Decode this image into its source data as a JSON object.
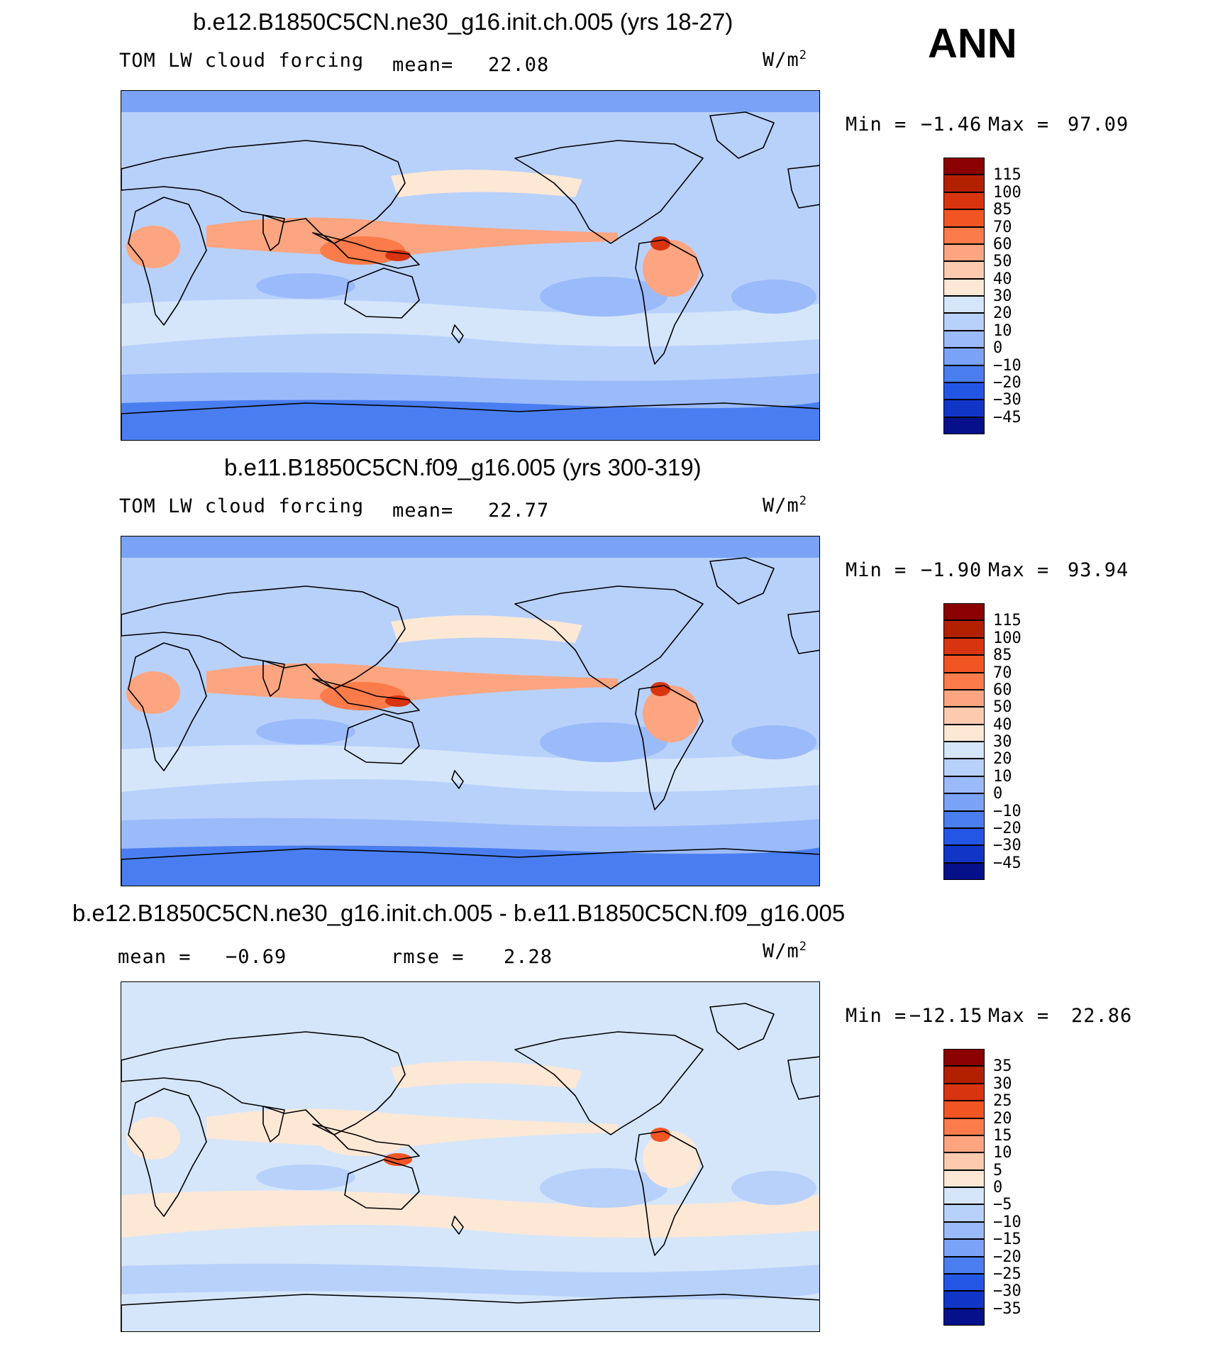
{
  "season": "ANN",
  "unit_base": "W/m",
  "unit_exp": "2",
  "panels": [
    {
      "title": "b.e12.B1850C5CN.ne30_g16.init.ch.005 (yrs 18-27)",
      "left_label": "TOM LW cloud forcing",
      "stat_label": "mean=",
      "stat_value": "22.08",
      "minmax": {
        "min_label": "Min =",
        "min": "−1.46",
        "max_label": "Max =",
        "max": "97.09"
      },
      "colorbar": {
        "labels": [
          "115",
          "100",
          "85",
          "70",
          "60",
          "50",
          "40",
          "30",
          "20",
          "10",
          "0",
          "−10",
          "−20",
          "−30",
          "−45"
        ],
        "colors": [
          "#8b0000",
          "#b32000",
          "#d83410",
          "#f25524",
          "#fb7b4a",
          "#fca580",
          "#fdcab0",
          "#fde8d6",
          "#d5e6fa",
          "#b8d1fb",
          "#9bbaf9",
          "#7aa2f7",
          "#4a7ef0",
          "#2456e6",
          "#1136c7",
          "#05108a"
        ]
      },
      "field": {
        "base": "#b8d1fb",
        "polar": "#7aa2f7",
        "antarctic": "#4a7ef0",
        "tropics": "#fca580",
        "warm_pool": "#fb7b4a",
        "core": "#d83410",
        "subtropic": "#d5e6fa",
        "cool": "#9bbaf9",
        "pale": "#fde8d6"
      }
    },
    {
      "title": "b.e11.B1850C5CN.f09_g16.005 (yrs 300-319)",
      "left_label": "TOM LW cloud forcing",
      "stat_label": "mean=",
      "stat_value": "22.77",
      "minmax": {
        "min_label": "Min =",
        "min": "−1.90",
        "max_label": "Max =",
        "max": "93.94"
      },
      "colorbar": {
        "labels": [
          "115",
          "100",
          "85",
          "70",
          "60",
          "50",
          "40",
          "30",
          "20",
          "10",
          "0",
          "−10",
          "−20",
          "−30",
          "−45"
        ],
        "colors": [
          "#8b0000",
          "#b32000",
          "#d83410",
          "#f25524",
          "#fb7b4a",
          "#fca580",
          "#fdcab0",
          "#fde8d6",
          "#d5e6fa",
          "#b8d1fb",
          "#9bbaf9",
          "#7aa2f7",
          "#4a7ef0",
          "#2456e6",
          "#1136c7",
          "#05108a"
        ]
      },
      "field": {
        "base": "#b8d1fb",
        "polar": "#7aa2f7",
        "antarctic": "#4a7ef0",
        "tropics": "#fca580",
        "warm_pool": "#fb7b4a",
        "core": "#d83410",
        "subtropic": "#d5e6fa",
        "cool": "#9bbaf9",
        "pale": "#fde8d6"
      }
    },
    {
      "title": "b.e12.B1850C5CN.ne30_g16.init.ch.005 - b.e11.B1850C5CN.f09_g16.005",
      "left_label": "mean =",
      "left_value": "−0.69",
      "stat_label": "rmse =",
      "stat_value": "2.28",
      "minmax": {
        "min_label": "Min =",
        "min": "−12.15",
        "max_label": "Max =",
        "max": "22.86"
      },
      "colorbar": {
        "labels": [
          "35",
          "30",
          "25",
          "20",
          "15",
          "10",
          "5",
          "0",
          "−5",
          "−10",
          "−15",
          "−20",
          "−25",
          "−30",
          "−35"
        ],
        "colors": [
          "#8b0000",
          "#b32000",
          "#d83410",
          "#f25524",
          "#fb7b4a",
          "#fca580",
          "#fdcab0",
          "#fde8d6",
          "#d5e6fa",
          "#b8d1fb",
          "#9bbaf9",
          "#7aa2f7",
          "#4a7ef0",
          "#2456e6",
          "#1136c7",
          "#05108a"
        ]
      },
      "field": {
        "base": "#d5e6fa",
        "polar": "#d5e6fa",
        "antarctic": "#d5e6fa",
        "tropics": "#fde8d6",
        "warm_pool": "#fde8d6",
        "core": "#f25524",
        "subtropic": "#fde8d6",
        "cool": "#b8d1fb",
        "pale": "#fde8d6"
      }
    }
  ]
}
